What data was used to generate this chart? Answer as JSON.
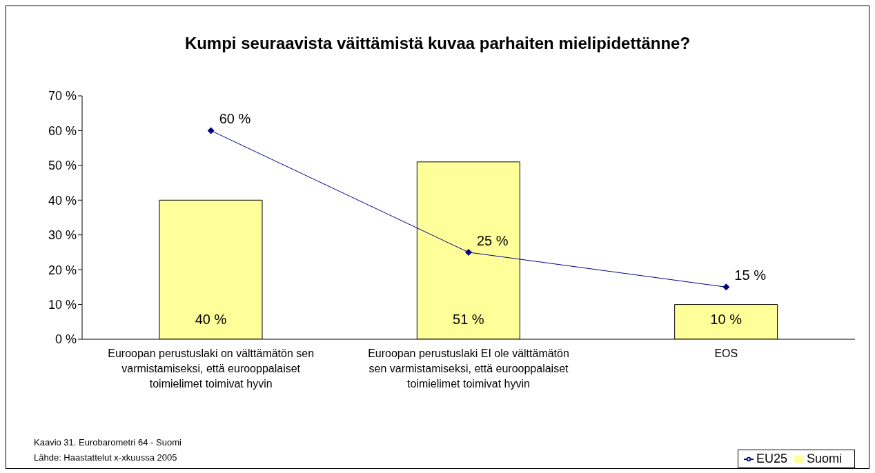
{
  "chart_data": {
    "type": "bar",
    "title": "Kumpi seuraavista väittämistä kuvaa parhaiten mielipidettänne?",
    "categories": [
      "Euroopan perustuslaki on välttämätön sen varmistamiseksi, että eurooppalaiset toimielimet toimivat hyvin",
      "Euroopan perustuslaki EI ole välttämätön sen varmistamiseksi, että eurooppalaiset toimielimet toimivat hyvin",
      "EOS"
    ],
    "series": [
      {
        "name": "Suomi",
        "color": "#ffff99",
        "values": [
          40,
          51,
          10
        ],
        "value_labels": [
          "40 %",
          "51 %",
          "10 %"
        ]
      },
      {
        "name": "EU25",
        "type": "line",
        "color": "#000080",
        "values": [
          60,
          25,
          15
        ],
        "value_labels": [
          "60 %",
          "25 %",
          "15 %"
        ]
      }
    ],
    "ylim": [
      0,
      70
    ],
    "yticks": [
      {
        "value": 0,
        "label": "0 %"
      },
      {
        "value": 10,
        "label": "10 %"
      },
      {
        "value": 20,
        "label": "20 %"
      },
      {
        "value": 30,
        "label": "30 %"
      },
      {
        "value": 40,
        "label": "40 %"
      },
      {
        "value": 50,
        "label": "50 %"
      },
      {
        "value": 60,
        "label": "60 %"
      },
      {
        "value": 70,
        "label": "70 %"
      }
    ],
    "grid": false,
    "legend": "bottom right",
    "marker": "diamond",
    "line_style": "solid",
    "annotations": [
      "Kaavio 31. Eurobarometri 64 - Suomi",
      "Lähde: Haastattelut x-xkuussa 2005"
    ]
  }
}
